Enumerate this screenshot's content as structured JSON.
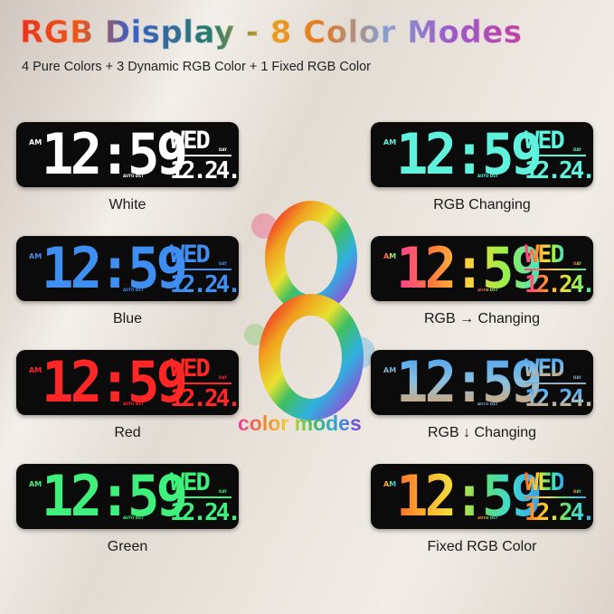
{
  "header": {
    "title": "RGB Display - 8 Color Modes",
    "subtitle": "4 Pure Colors + 3 Dynamic RGB Color + 1 Fixed RGB Color"
  },
  "clock_face": {
    "am": "AM",
    "time": "12:59",
    "day": "WED",
    "day_label": "DAY",
    "date": "12.24.",
    "auto_dst": "AUTO DST"
  },
  "center": {
    "numeral": "8",
    "caption": "color modes"
  },
  "modes": [
    {
      "label": "White",
      "colors": [
        "#ffffff"
      ],
      "direction": "solid"
    },
    {
      "label": "Blue",
      "colors": [
        "#3f8ef2"
      ],
      "direction": "solid"
    },
    {
      "label": "Red",
      "colors": [
        "#ff2626"
      ],
      "direction": "solid"
    },
    {
      "label": "Green",
      "colors": [
        "#3ff07c"
      ],
      "direction": "solid"
    },
    {
      "label": "RGB Changing",
      "colors": [
        "#5ff2dc"
      ],
      "direction": "solid"
    },
    {
      "label": "RGB → Changing",
      "colors": [
        "#ff3a9a",
        "#ff7a3a",
        "#ffd23a",
        "#9ef04a",
        "#4ae0c0"
      ],
      "direction": "horizontal"
    },
    {
      "label": "RGB ↓ Changing",
      "colors": [
        "#3a9cf4",
        "#8ac0e0",
        "#ff9a3a"
      ],
      "direction": "vertical"
    },
    {
      "label": "Fixed RGB Color",
      "colors": [
        "#ff6a2a",
        "#ffb02a",
        "#f0e040",
        "#60e070",
        "#40d8d0",
        "#3aa0f0"
      ],
      "direction": "horizontal"
    }
  ]
}
